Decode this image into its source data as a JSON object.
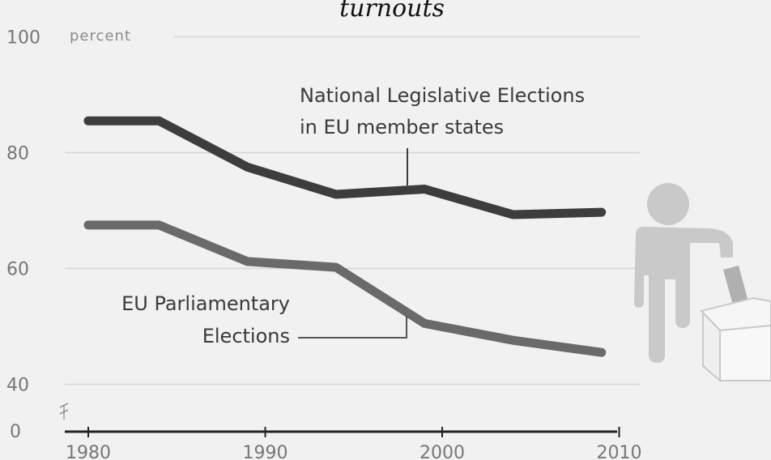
{
  "chart_data": {
    "type": "line",
    "title": "turnouts",
    "ylabel": "percent",
    "xlim": [
      1977,
      2010
    ],
    "ylim": [
      0,
      100
    ],
    "y_axis_break": true,
    "grid": true,
    "x_ticks": [
      "1980",
      "1990",
      "2000",
      "2010"
    ],
    "y_ticks": [
      "100",
      "80",
      "60",
      "40",
      "0"
    ],
    "series": [
      {
        "name": "National Legislative Elections in EU member states",
        "x": [
          1980,
          1984,
          1989,
          1994,
          1999,
          2004,
          2009
        ],
        "y": [
          85.5,
          85.5,
          77.5,
          72.8,
          73.7,
          69.3,
          69.7
        ],
        "color": "#3d3d3d"
      },
      {
        "name": "EU Parliamentary Elections",
        "x": [
          1980,
          1984,
          1989,
          1994,
          1999,
          2004,
          2009
        ],
        "y": [
          67.5,
          67.5,
          61.2,
          60.2,
          50.5,
          47.6,
          45.5
        ],
        "color": "#6a6a6a"
      }
    ],
    "annotations": {
      "national_lines": [
        "National Legislative Elections",
        "in EU member states"
      ],
      "eu_lines": [
        "EU Parliamentary",
        "Elections"
      ]
    },
    "pictogram": "voter-ballot-box-icon"
  }
}
